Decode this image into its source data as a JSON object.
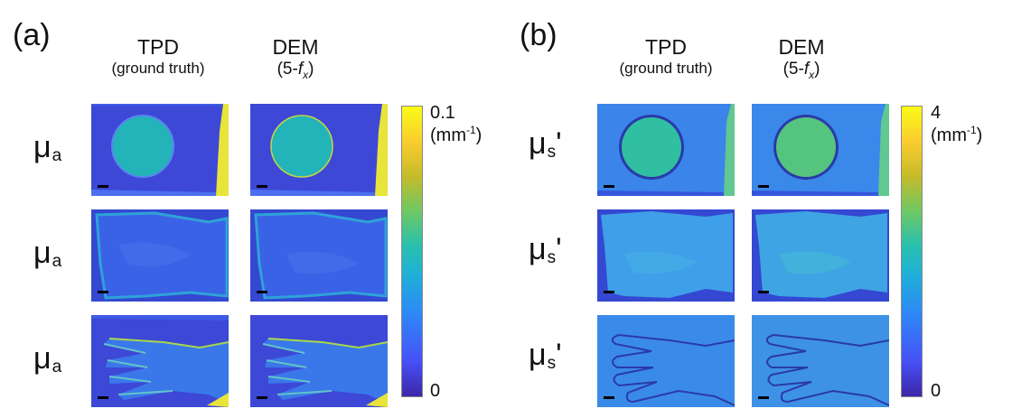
{
  "panels": [
    {
      "label": "(a)",
      "columns": [
        {
          "title": "TPD",
          "subtitle": "(ground truth)"
        },
        {
          "title": "DEM",
          "subtitle_prefix": "(5-",
          "subtitle_var": "f",
          "subtitle_sub": "x",
          "subtitle_suffix": ")"
        }
      ],
      "rows": [
        {
          "symbol": "μ",
          "subscript": "a",
          "prime": "",
          "image": "phantom"
        },
        {
          "symbol": "μ",
          "subscript": "a",
          "prime": "",
          "image": "tissue"
        },
        {
          "symbol": "μ",
          "subscript": "a",
          "prime": "",
          "image": "hand"
        }
      ],
      "colorbar": {
        "max_label": "0.1",
        "unit_base": "(mm",
        "unit_exp": "-1",
        "unit_close": ")",
        "min_label": "0"
      }
    },
    {
      "label": "(b)",
      "columns": [
        {
          "title": "TPD",
          "subtitle": "(ground truth)"
        },
        {
          "title": "DEM",
          "subtitle_prefix": "(5-",
          "subtitle_var": "f",
          "subtitle_sub": "x",
          "subtitle_suffix": ")"
        }
      ],
      "rows": [
        {
          "symbol": "μ",
          "subscript": "s",
          "prime": "'",
          "image": "phantom"
        },
        {
          "symbol": "μ",
          "subscript": "s",
          "prime": "'",
          "image": "tissue"
        },
        {
          "symbol": "μ",
          "subscript": "s",
          "prime": "'",
          "image": "hand"
        }
      ],
      "colorbar": {
        "max_label": "4",
        "unit_base": "(mm",
        "unit_exp": "-1",
        "unit_close": ")",
        "min_label": "0"
      }
    }
  ],
  "colors": {
    "bg_dark": "#3d48d6",
    "bg_mid": "#4a6ff0",
    "edge_yellow": "#e8e43a",
    "disk_a": "#22b4b8",
    "disk_b_tpd": "#30bfa0",
    "disk_b_dem": "#55c47e",
    "tissue_a": "#3a62e6",
    "tissue_b": "#3f9fe8",
    "hand_b": "#3a8ae9",
    "hand_b_edge": "#2a3aa8"
  }
}
